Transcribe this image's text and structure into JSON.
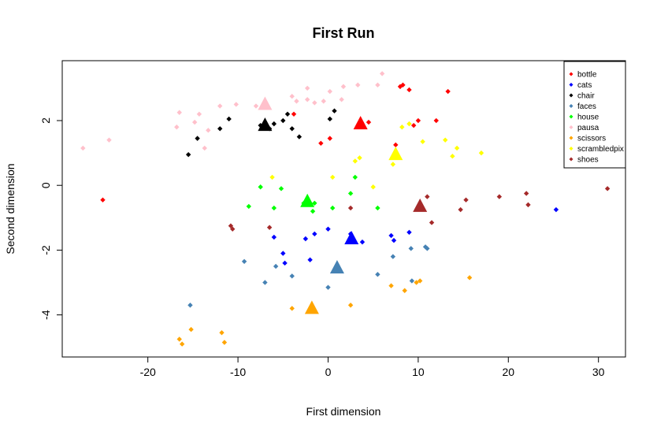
{
  "chart_data": {
    "type": "scatter",
    "title": "First Run",
    "xlabel": "First dimension",
    "ylabel": "Second dimension",
    "xlim": [
      -29.5,
      33
    ],
    "ylim": [
      -5.3,
      3.85
    ],
    "xticks": [
      -20,
      -10,
      0,
      10,
      20,
      30
    ],
    "yticks": [
      -4,
      -2,
      0,
      2
    ],
    "grid": false,
    "legend_position": "top-right",
    "series": [
      {
        "name": "bottle",
        "color": "#ff0000",
        "points": [
          [
            -25,
            -0.45
          ],
          [
            -3.8,
            2.2
          ],
          [
            -0.8,
            1.3
          ],
          [
            0.2,
            1.45
          ],
          [
            4.5,
            1.95
          ],
          [
            7.5,
            1.25
          ],
          [
            8,
            3.05
          ],
          [
            8.3,
            3.1
          ],
          [
            9,
            2.95
          ],
          [
            9.5,
            1.85
          ],
          [
            10,
            2
          ],
          [
            12,
            2
          ],
          [
            13.3,
            2.9
          ]
        ],
        "centroid": [
          3.6,
          1.9
        ]
      },
      {
        "name": "cats",
        "color": "#0000ff",
        "points": [
          [
            -6,
            -1.6
          ],
          [
            -5,
            -2.1
          ],
          [
            -4.8,
            -2.4
          ],
          [
            -2.5,
            -1.65
          ],
          [
            -2,
            -2.3
          ],
          [
            -1.5,
            -1.5
          ],
          [
            0,
            -1.35
          ],
          [
            2.5,
            -1.5
          ],
          [
            3.8,
            -1.75
          ],
          [
            7,
            -1.55
          ],
          [
            7.3,
            -1.7
          ],
          [
            9,
            -1.45
          ],
          [
            25.3,
            -0.75
          ]
        ],
        "centroid": [
          2.6,
          -1.65
        ]
      },
      {
        "name": "chair",
        "color": "#000000",
        "points": [
          [
            -15.5,
            0.95
          ],
          [
            -14.5,
            1.45
          ],
          [
            -12,
            1.75
          ],
          [
            -11,
            2.05
          ],
          [
            -7.5,
            1.85
          ],
          [
            -6.5,
            1.75
          ],
          [
            -6,
            1.9
          ],
          [
            -5,
            2
          ],
          [
            -4.5,
            2.2
          ],
          [
            -4,
            1.75
          ],
          [
            -3.2,
            1.5
          ],
          [
            0.2,
            2.05
          ],
          [
            0.7,
            2.3
          ]
        ],
        "centroid": [
          -7,
          1.85
        ]
      },
      {
        "name": "faces",
        "color": "#4682b4",
        "points": [
          [
            -15.3,
            -3.7
          ],
          [
            -9.3,
            -2.35
          ],
          [
            -7,
            -3
          ],
          [
            -5.8,
            -2.5
          ],
          [
            -4,
            -2.8
          ],
          [
            0,
            -3.15
          ],
          [
            5.5,
            -2.75
          ],
          [
            7.2,
            -2.2
          ],
          [
            9.2,
            -1.95
          ],
          [
            9.3,
            -2.95
          ],
          [
            10.8,
            -1.9
          ],
          [
            11,
            -1.95
          ]
        ],
        "centroid": [
          1,
          -2.55
        ]
      },
      {
        "name": "house",
        "color": "#00ff00",
        "points": [
          [
            -8.8,
            -0.65
          ],
          [
            -7.5,
            -0.05
          ],
          [
            -6,
            -0.7
          ],
          [
            -5.2,
            -0.1
          ],
          [
            -2.7,
            -0.55
          ],
          [
            -1.7,
            -0.8
          ],
          [
            -1.5,
            -0.55
          ],
          [
            0.5,
            -0.7
          ],
          [
            2.5,
            -0.25
          ],
          [
            3,
            0.25
          ],
          [
            5.5,
            -0.7
          ]
        ],
        "centroid": [
          -2.3,
          -0.5
        ]
      },
      {
        "name": "pausa",
        "color": "#ffc0cb",
        "points": [
          [
            -27.2,
            1.15
          ],
          [
            -24.3,
            1.4
          ],
          [
            -16.8,
            1.8
          ],
          [
            -16.5,
            2.25
          ],
          [
            -14.8,
            1.95
          ],
          [
            -14.3,
            2.2
          ],
          [
            -13.7,
            1.15
          ],
          [
            -13.3,
            1.7
          ],
          [
            -12,
            2.45
          ],
          [
            -10.2,
            2.5
          ],
          [
            -8,
            2.45
          ],
          [
            -4,
            2.75
          ],
          [
            -3.5,
            2.6
          ],
          [
            -2.3,
            3
          ],
          [
            -2.3,
            2.65
          ],
          [
            -1.5,
            2.55
          ],
          [
            -0.5,
            2.6
          ],
          [
            0.2,
            2.9
          ],
          [
            1.5,
            2.65
          ],
          [
            1.7,
            3.05
          ],
          [
            3.3,
            3.1
          ],
          [
            5.5,
            3.1
          ],
          [
            6,
            3.45
          ]
        ],
        "centroid": [
          -7,
          2.5
        ]
      },
      {
        "name": "scissors",
        "color": "#ffa500",
        "points": [
          [
            -16.5,
            -4.75
          ],
          [
            -16.2,
            -4.9
          ],
          [
            -15.2,
            -4.45
          ],
          [
            -11.8,
            -4.55
          ],
          [
            -11.5,
            -4.85
          ],
          [
            -4,
            -3.8
          ],
          [
            2.5,
            -3.7
          ],
          [
            7,
            -3.1
          ],
          [
            8.5,
            -3.25
          ],
          [
            9.8,
            -3
          ],
          [
            10.2,
            -2.95
          ],
          [
            15.7,
            -2.85
          ]
        ],
        "centroid": [
          -1.8,
          -3.8
        ]
      },
      {
        "name": "scrambledpix",
        "color": "#ffff00",
        "points": [
          [
            -6.2,
            0.25
          ],
          [
            0.5,
            0.25
          ],
          [
            3,
            0.75
          ],
          [
            3.5,
            0.85
          ],
          [
            5,
            -0.05
          ],
          [
            7.2,
            0.65
          ],
          [
            8.2,
            1.8
          ],
          [
            9,
            1.9
          ],
          [
            10.5,
            1.35
          ],
          [
            13,
            1.4
          ],
          [
            13.8,
            0.9
          ],
          [
            14.3,
            1.15
          ],
          [
            17,
            1
          ]
        ],
        "centroid": [
          7.5,
          0.95
        ]
      },
      {
        "name": "shoes",
        "color": "#a52a2a",
        "points": [
          [
            -10.8,
            -1.25
          ],
          [
            -10.6,
            -1.35
          ],
          [
            -6.5,
            -1.3
          ],
          [
            2.5,
            -0.7
          ],
          [
            11,
            -0.35
          ],
          [
            11.5,
            -1.15
          ],
          [
            14.7,
            -0.75
          ],
          [
            15.3,
            -0.45
          ],
          [
            19,
            -0.35
          ],
          [
            22,
            -0.25
          ],
          [
            22.2,
            -0.6
          ],
          [
            31,
            -0.1
          ]
        ],
        "centroid": [
          10.2,
          -0.65
        ]
      }
    ]
  }
}
